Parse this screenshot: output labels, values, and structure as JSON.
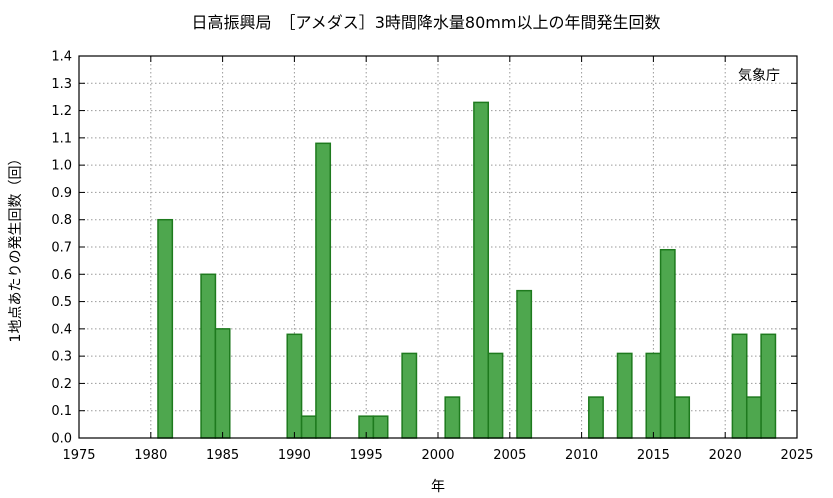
{
  "chart_data": {
    "type": "bar",
    "title": "日高振興局　［アメダス］3時間降水量80mm以上の年間発生回数",
    "xlabel": "年",
    "ylabel": "1地点あたりの発生回数（回）",
    "credit": "気象庁",
    "xlim": [
      1975,
      2025
    ],
    "ylim": [
      0.0,
      1.4
    ],
    "x_ticks": [
      1975,
      1980,
      1985,
      1990,
      1995,
      2000,
      2005,
      2010,
      2015,
      2020,
      2025
    ],
    "y_ticks": [
      "0.0",
      "0.1",
      "0.2",
      "0.3",
      "0.4",
      "0.5",
      "0.6",
      "0.7",
      "0.8",
      "0.9",
      "1.0",
      "1.1",
      "1.2",
      "1.3",
      "1.4"
    ],
    "grid": true,
    "bar_color": "#4ea74e",
    "bar_edge_color": "#1e7a1e",
    "x": [
      1981,
      1984,
      1985,
      1990,
      1991,
      1992,
      1995,
      1996,
      1998,
      2001,
      2003,
      2004,
      2006,
      2011,
      2013,
      2015,
      2016,
      2017,
      2021,
      2022,
      2023
    ],
    "values": [
      0.8,
      0.6,
      0.4,
      0.38,
      0.08,
      1.08,
      0.08,
      0.08,
      0.31,
      0.15,
      1.23,
      0.31,
      0.54,
      0.15,
      0.31,
      0.31,
      0.69,
      0.15,
      0.38,
      0.15,
      0.38
    ]
  }
}
